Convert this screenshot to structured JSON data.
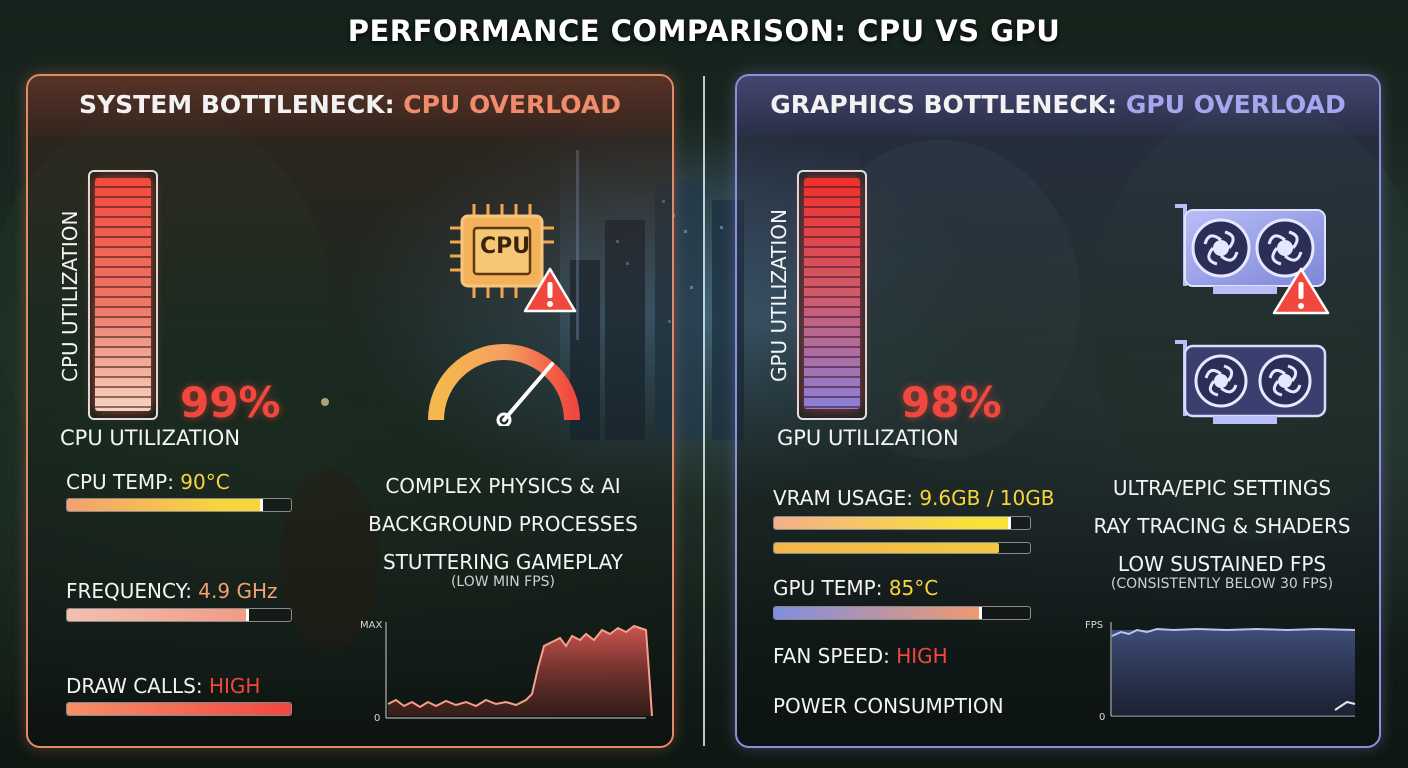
{
  "title": "PERFORMANCE COMPARISON: CPU VS GPU",
  "cpu_panel": {
    "header_prefix": "SYSTEM BOTTLENECK: ",
    "header_highlight": "CPU OVERLOAD",
    "utilization_vertical_label": "CPU UTILIZATION",
    "utilization_value": "99%",
    "utilization_fraction": 0.99,
    "utilization_caption": "CPU UTILIZATION",
    "chip_label": "CPU",
    "metrics": [
      {
        "label": "CPU TEMP: ",
        "value": "90°C",
        "level": 0.87
      },
      {
        "label": "FREQUENCY: ",
        "value": "4.9 GHz",
        "level": 0.81
      },
      {
        "label": "DRAW CALLS: ",
        "value": "HIGH",
        "level": 1.0
      }
    ],
    "info_lines": [
      "COMPLEX PHYSICS & AI",
      "BACKGROUND PROCESSES",
      "STUTTERING GAMEPLAY"
    ],
    "info_sub": "(LOW MIN FPS)",
    "graph": {
      "y_max_label": "MAX",
      "y_min_label": "0"
    }
  },
  "gpu_panel": {
    "header_prefix": "GRAPHICS BOTTLENECK: ",
    "header_highlight": "GPU OVERLOAD",
    "utilization_vertical_label": "GPU UTILIZATION",
    "utilization_value": "98%",
    "utilization_fraction": 0.98,
    "utilization_caption": "GPU UTILIZATION",
    "metrics": [
      {
        "label": "VRAM USAGE: ",
        "value": "9.6GB / 10GB",
        "level": 0.92,
        "secondary_level": 0.88
      },
      {
        "label": "GPU TEMP: ",
        "value": "85°C",
        "level": 0.81
      },
      {
        "label": "FAN SPEED: ",
        "value": "HIGH"
      },
      {
        "label": "POWER CONSUMPTION",
        "value": ""
      }
    ],
    "info_lines": [
      "ULTRA/EPIC SETTINGS",
      "RAY TRACING & SHADERS",
      "LOW SUSTAINED FPS"
    ],
    "info_sub": "(CONSISTENTLY BELOW 30 FPS)",
    "graph": {
      "y_max_label": "FPS",
      "y_min_label": "0"
    }
  },
  "colors": {
    "cpu_accent": "#f08c6c",
    "gpu_accent": "#a6a6ef",
    "alert_red": "#f0483e",
    "value_yellow": "#f7d63c"
  },
  "icons": [
    "cpu-chip-icon",
    "warning-triangle-icon",
    "speedometer-gauge-icon",
    "graphics-card-icon"
  ]
}
